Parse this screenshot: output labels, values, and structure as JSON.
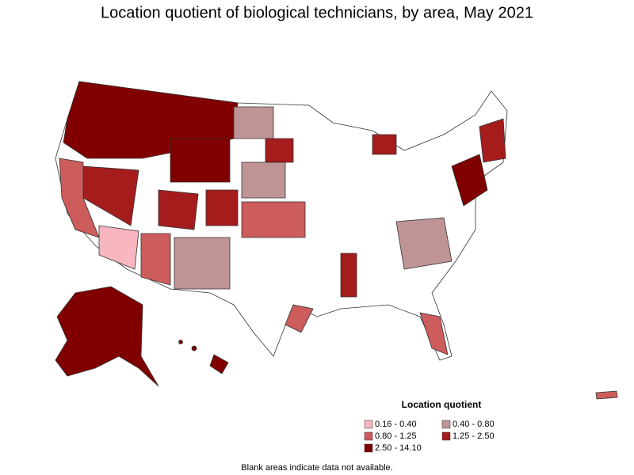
{
  "title": "Location quotient of biological technicians, by area, May 2021",
  "legend": {
    "title": "Location quotient",
    "items": [
      {
        "label": "0.16 - 0.40",
        "color": "#f7b6c0"
      },
      {
        "label": "0.40 - 0.80",
        "color": "#c09494"
      },
      {
        "label": "0.80 - 1.25",
        "color": "#cd5c5c"
      },
      {
        "label": "1.25 - 2.50",
        "color": "#a51c1c"
      },
      {
        "label": "2.50 - 14.10",
        "color": "#800000"
      }
    ]
  },
  "note": "Blank areas indicate data not available."
}
